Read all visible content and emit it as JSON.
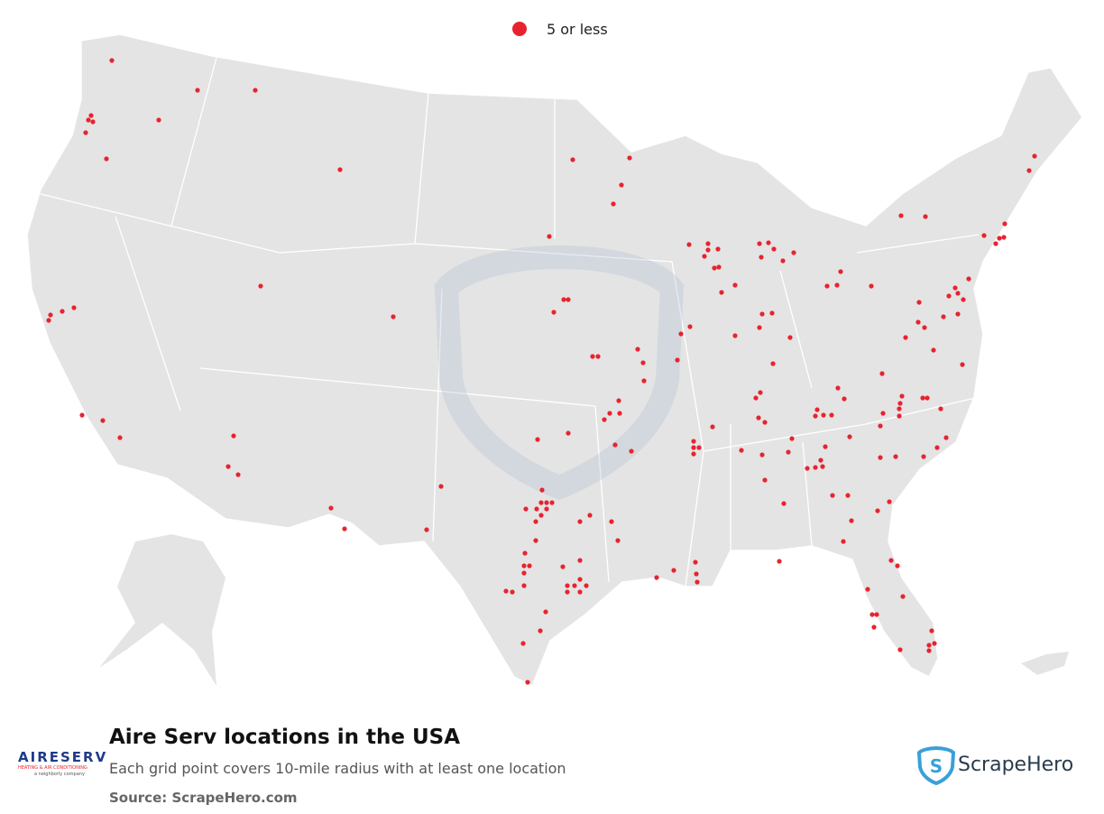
{
  "legend": {
    "label": "5 or less",
    "color": "#e8232f"
  },
  "footer": {
    "title": "Aire Serv locations in the USA",
    "subtitle": "Each grid point covers 10-mile radius with at least one location",
    "source": "Source: ScrapeHero.com"
  },
  "logo": {
    "name": "AIRESERV",
    "tagline": "HEATING & AIR CONDITIONING",
    "parent": "a neighborly company"
  },
  "brand": {
    "name": "ScrapeHero"
  }
}
